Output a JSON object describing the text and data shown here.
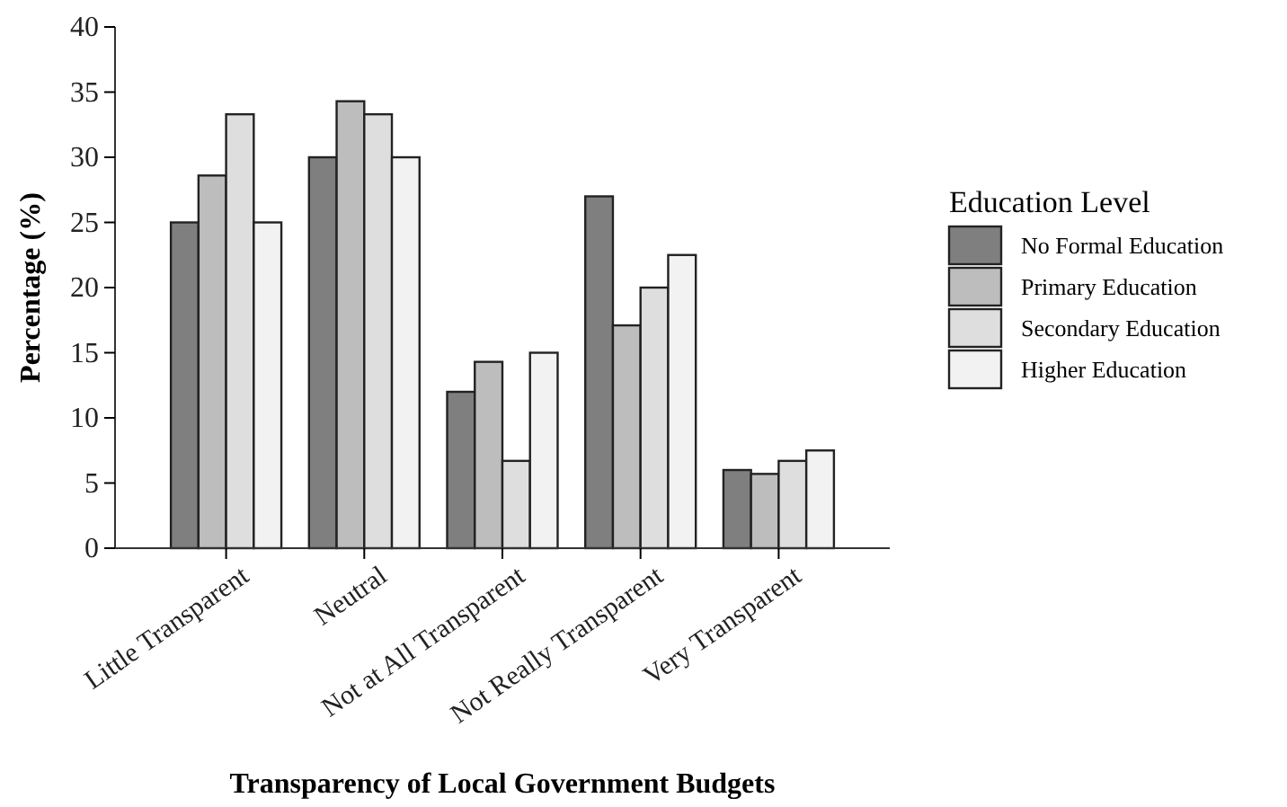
{
  "chart_data": {
    "type": "bar",
    "xlabel": "Transparency of Local Government Budgets",
    "ylabel": "Percentage (%)",
    "legend_title": "Education Level",
    "categories": [
      "Little Transparent",
      "Neutral",
      "Not at All Transparent",
      "Not Really Transparent",
      "Very Transparent"
    ],
    "series": [
      {
        "name": "No Formal Education",
        "color": "#7f7f7f",
        "values": [
          25,
          30,
          12,
          27,
          6
        ]
      },
      {
        "name": "Primary Education",
        "color": "#bdbdbd",
        "values": [
          28.6,
          34.3,
          14.3,
          17.1,
          5.7
        ]
      },
      {
        "name": "Secondary Education",
        "color": "#dedede",
        "values": [
          33.3,
          33.3,
          6.7,
          20,
          6.7
        ]
      },
      {
        "name": "Higher Education",
        "color": "#f2f2f2",
        "values": [
          25,
          30,
          15,
          22.5,
          7.5
        ]
      }
    ],
    "ylim": [
      0,
      40
    ],
    "yticks": [
      0,
      5,
      10,
      15,
      20,
      25,
      30,
      35,
      40
    ],
    "grid": false,
    "legend": "right"
  }
}
